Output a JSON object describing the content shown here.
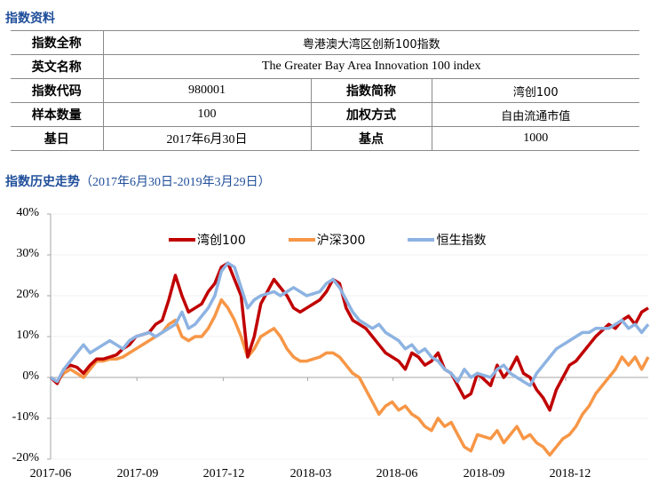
{
  "section1": {
    "title": "指数资料"
  },
  "info_table": {
    "rows": [
      {
        "label": "指数全称",
        "value": "粤港澳大湾区创新100指数"
      },
      {
        "label": "英文名称",
        "value": "The Greater Bay Area Innovation 100 index"
      },
      {
        "label": "指数代码",
        "value": "980001",
        "label2": "指数简称",
        "value2": "湾创100"
      },
      {
        "label": "样本数量",
        "value": "100",
        "label2": "加权方式",
        "value2": "自由流通市值"
      },
      {
        "label": "基日",
        "value": "2017年6月30日",
        "label2": "基点",
        "value2": "1000"
      }
    ]
  },
  "section2": {
    "title": "指数历史走势",
    "subtitle": "（2017年6月30日-2019年3月29日）"
  },
  "chart_data": {
    "type": "line",
    "title": "指数历史走势（2017年6月30日-2019年3月29日）",
    "xlabel": "",
    "ylabel": "",
    "ylim": [
      -0.2,
      0.4
    ],
    "yticks": [
      "40%",
      "30%",
      "20%",
      "10%",
      "0%",
      "-10%",
      "-20%"
    ],
    "xticks": [
      "2017-06",
      "2017-09",
      "2017-12",
      "2018-03",
      "2018-06",
      "2018-09",
      "2018-12"
    ],
    "grid": true,
    "legend_position": "top-center",
    "x": [
      "2017-06-30",
      "2017-07-07",
      "2017-07-14",
      "2017-07-21",
      "2017-07-28",
      "2017-08-04",
      "2017-08-11",
      "2017-08-18",
      "2017-08-25",
      "2017-09-01",
      "2017-09-08",
      "2017-09-15",
      "2017-09-22",
      "2017-09-29",
      "2017-10-13",
      "2017-10-20",
      "2017-10-27",
      "2017-11-03",
      "2017-11-10",
      "2017-11-17",
      "2017-11-24",
      "2017-12-01",
      "2017-12-08",
      "2017-12-15",
      "2017-12-22",
      "2017-12-29",
      "2018-01-05",
      "2018-01-12",
      "2018-01-19",
      "2018-01-26",
      "2018-02-02",
      "2018-02-09",
      "2018-02-23",
      "2018-03-02",
      "2018-03-09",
      "2018-03-16",
      "2018-03-23",
      "2018-03-30",
      "2018-04-13",
      "2018-04-20",
      "2018-04-27",
      "2018-05-04",
      "2018-05-11",
      "2018-05-18",
      "2018-05-25",
      "2018-06-01",
      "2018-06-08",
      "2018-06-15",
      "2018-06-22",
      "2018-06-29",
      "2018-07-06",
      "2018-07-13",
      "2018-07-20",
      "2018-07-27",
      "2018-08-03",
      "2018-08-10",
      "2018-08-17",
      "2018-08-24",
      "2018-08-31",
      "2018-09-07",
      "2018-09-14",
      "2018-09-21",
      "2018-09-28",
      "2018-10-12",
      "2018-10-19",
      "2018-10-26",
      "2018-11-02",
      "2018-11-09",
      "2018-11-16",
      "2018-11-23",
      "2018-11-30",
      "2018-12-07",
      "2018-12-14",
      "2018-12-21",
      "2018-12-28",
      "2019-01-04",
      "2019-01-11",
      "2019-01-18",
      "2019-01-25",
      "2019-02-01",
      "2019-02-15",
      "2019-02-22",
      "2019-03-01",
      "2019-03-08",
      "2019-03-15",
      "2019-03-22",
      "2019-03-29"
    ],
    "series": [
      {
        "name": "湾创100",
        "color": "#c00000",
        "values": [
          0,
          -1.5,
          2,
          3,
          2.5,
          1,
          3,
          4.5,
          4.5,
          5,
          5.5,
          7,
          8,
          10,
          11,
          13,
          14,
          19,
          25,
          20,
          16,
          17,
          18,
          21,
          23,
          27,
          28,
          24,
          20,
          5,
          10,
          18,
          24,
          22,
          20,
          17,
          16,
          17,
          19,
          21,
          24,
          23,
          17,
          14,
          13,
          12,
          10,
          8,
          6,
          5,
          4,
          2,
          6,
          5,
          3,
          4,
          6,
          2,
          1,
          -2,
          -5,
          -4,
          1,
          -2,
          3,
          0,
          2,
          5,
          1,
          0,
          -3,
          -5,
          -8,
          -3,
          0,
          3,
          4,
          6,
          8,
          10,
          13,
          12,
          14,
          15,
          13,
          16,
          17
        ]
      },
      {
        "name": "沪深300",
        "color": "#f79646",
        "values": [
          0,
          -1,
          1,
          2,
          1,
          0,
          2,
          4,
          4,
          4.5,
          4.5,
          5,
          6,
          7,
          9,
          10,
          11,
          13,
          14,
          10,
          9,
          10,
          10,
          12,
          15,
          19,
          17,
          14,
          10,
          5,
          7,
          10,
          12,
          10,
          7,
          5,
          4,
          4,
          5,
          6,
          6,
          5,
          3,
          1,
          0,
          -3,
          -6,
          -9,
          -7,
          -6,
          -8,
          -7,
          -9,
          -10,
          -12,
          -13,
          -10,
          -12,
          -11,
          -14,
          -17,
          -18,
          -14,
          -15,
          -13,
          -16,
          -14,
          -12,
          -15,
          -14,
          -16,
          -17,
          -19,
          -17,
          -15,
          -14,
          -12,
          -9,
          -7,
          -4,
          0,
          2,
          5,
          3,
          5,
          2,
          5
        ]
      },
      {
        "name": "恒生指数",
        "color": "#8db3e2",
        "values": [
          0,
          -1,
          2,
          4,
          6,
          8,
          6,
          7,
          8,
          9,
          8,
          7,
          9,
          10,
          11,
          10,
          11,
          12,
          13,
          16,
          12,
          13,
          15,
          17,
          20,
          26,
          28,
          27,
          22,
          17,
          19,
          20,
          21,
          20,
          21,
          22,
          21,
          20,
          21,
          23,
          24,
          22,
          19,
          16,
          14,
          13,
          12,
          13,
          11,
          10,
          9,
          7,
          8,
          6,
          7,
          5,
          4,
          2,
          1,
          -1,
          2,
          0,
          1,
          0,
          2,
          3,
          1,
          0,
          -1,
          -2,
          1,
          3,
          5,
          7,
          8,
          9,
          10,
          11,
          11,
          12,
          12,
          13,
          14,
          12,
          13,
          11,
          13
        ]
      }
    ]
  }
}
